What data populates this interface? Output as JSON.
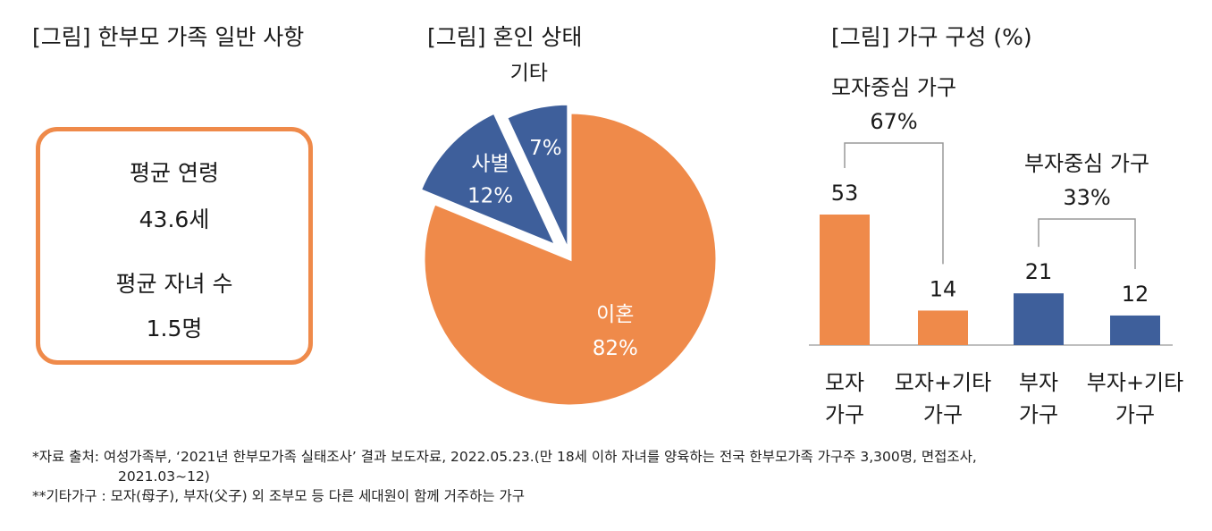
{
  "titles": {
    "general": "[그림] 한부모 가족 일반 사항",
    "marital": "[그림] 혼인 상태",
    "household": "[그림] 가구 구성 (%)"
  },
  "stats": {
    "avg_age_label": "평균 연령",
    "avg_age_value": "43.6세",
    "avg_children_label": "평균 자녀 수",
    "avg_children_value": "1.5명"
  },
  "colors": {
    "orange": "#EF8A4A",
    "blue": "#3E5F9B"
  },
  "chart_data": [
    {
      "type": "pie",
      "title": "[그림] 혼인 상태",
      "slices": [
        {
          "label": "이혼",
          "value": 82,
          "display": "82%"
        },
        {
          "label": "사별",
          "value": 12,
          "display": "12%"
        },
        {
          "label": "기타",
          "value": 7,
          "display": "7%"
        }
      ]
    },
    {
      "type": "bar",
      "title": "[그림] 가구 구성 (%)",
      "categories": [
        [
          "모자",
          "가구"
        ],
        [
          "모자+기타",
          "가구"
        ],
        [
          "부자",
          "가구"
        ],
        [
          "부자+기타",
          "가구"
        ]
      ],
      "values": [
        53,
        14,
        21,
        12
      ],
      "value_labels": [
        "53",
        "14",
        "21",
        "12"
      ],
      "ylim": [
        0,
        53
      ],
      "groups": [
        {
          "name": "모자중심 가구",
          "value": "67%",
          "members": [
            0,
            1
          ]
        },
        {
          "name": "부자중심 가구",
          "value": "33%",
          "members": [
            2,
            3
          ]
        }
      ]
    }
  ],
  "notes": {
    "line1": "*자료 출처: 여성가족부, ‘2021년 한부모가족 실태조사’ 결과 보도자료, 2022.05.23.(만 18세 이하 자녀를 양육하는 전국 한부모가족 가구주 3,300명, 면접조사,",
    "line2": "2021.03~12)",
    "line3": "**기타가구 : 모자(母子), 부자(父子) 외 조부모 등 다른 세대원이 함께 거주하는 가구"
  }
}
